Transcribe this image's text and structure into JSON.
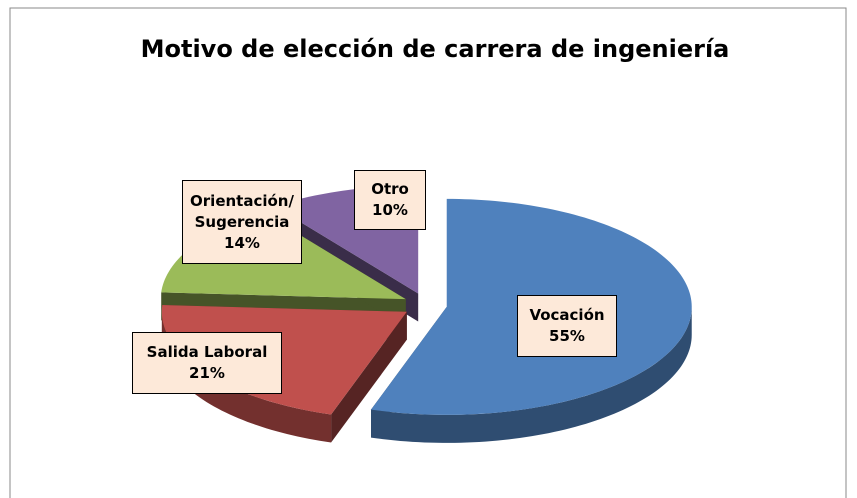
{
  "chart_data": {
    "type": "pie3d",
    "title": "Motivo de elección de carrera de ingeniería",
    "categories": [
      "Vocación",
      "Salida Laboral",
      "Orientación/ Sugerencia",
      "Otro"
    ],
    "values": [
      55,
      21,
      14,
      10
    ],
    "value_labels": [
      "55%",
      "21%",
      "14%",
      "10%"
    ],
    "colors": [
      "#4f81bd",
      "#c0504d",
      "#9bbb59",
      "#8064a2"
    ]
  }
}
